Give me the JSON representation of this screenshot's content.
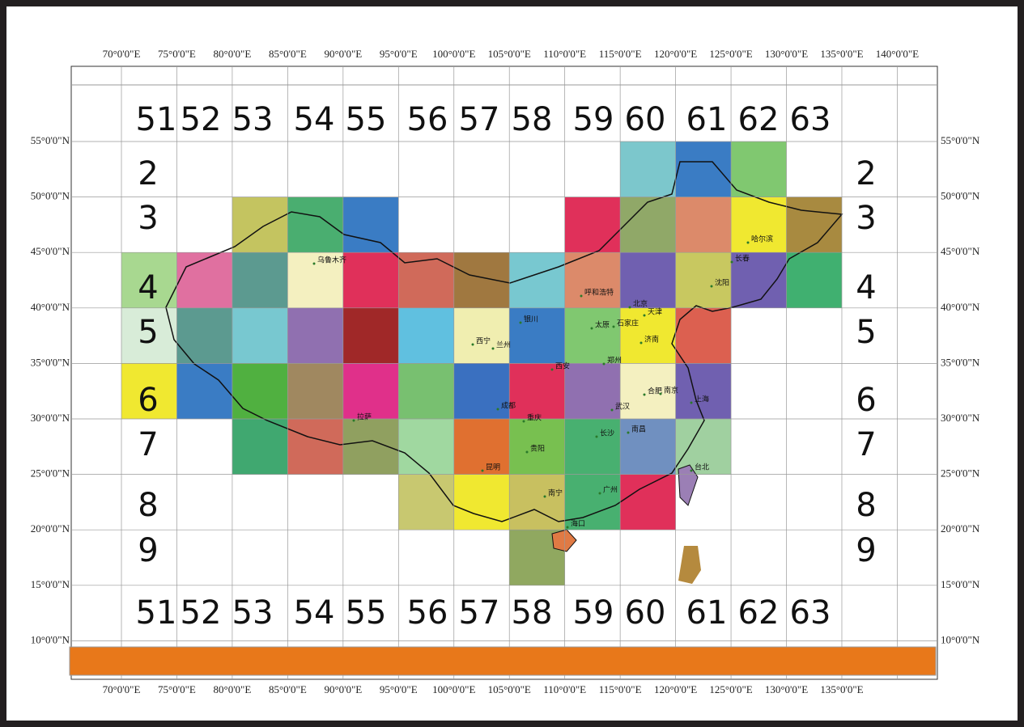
{
  "map": {
    "top_lon_labels": [
      "70°0'0\"E",
      "75°0'0\"E",
      "80°0'0\"E",
      "85°0'0\"E",
      "90°0'0\"E",
      "95°0'0\"E",
      "100°0'0\"E",
      "105°0'0\"E",
      "110°0'0\"E",
      "115°0'0\"E",
      "120°0'0\"E",
      "125°0'0\"E",
      "130°0'0\"E",
      "135°0'0\"E",
      "140°0'0\"E"
    ],
    "bottom_lon_labels": [
      "70°0'0\"E",
      "75°0'0\"E",
      "80°0'0\"E",
      "85°0'0\"E",
      "90°0'0\"E",
      "95°0'0\"E",
      "100°0'0\"E",
      "105°0'0\"E",
      "110°0'0\"E",
      "115°0'0\"E",
      "120°0'0\"E",
      "125°0'0\"E",
      "130°0'0\"E",
      "135°0'0\"E"
    ],
    "left_lat_labels": [
      "55°0'0\"N",
      "50°0'0\"N",
      "45°0'0\"N",
      "40°0'0\"N",
      "35°0'0\"N",
      "30°0'0\"N",
      "25°0'0\"N",
      "20°0'0\"N",
      "15°0'0\"N",
      "10°0'0\"N"
    ],
    "right_lat_labels": [
      "55°0'0\"N",
      "50°0'0\"N",
      "45°0'0\"N",
      "40°0'0\"N",
      "35°0'0\"N",
      "30°0'0\"N",
      "25°0'0\"N",
      "20°0'0\"N",
      "15°0'0\"N",
      "10°0'0\"N"
    ],
    "top_sheet_columns": [
      "51",
      "52",
      "53",
      "54",
      "55",
      "56",
      "57",
      "58",
      "59",
      "60",
      "61",
      "62",
      "63"
    ],
    "bottom_sheet_columns": [
      "51",
      "52",
      "53",
      "54",
      "55",
      "56",
      "57",
      "58",
      "59",
      "60",
      "61",
      "62",
      "63"
    ],
    "left_sheet_rows": [
      "2",
      "3",
      "4",
      "5",
      "6",
      "7",
      "8",
      "9"
    ],
    "right_sheet_rows": [
      "2",
      "3",
      "4",
      "5",
      "6",
      "7",
      "8",
      "9"
    ],
    "cities": [
      "乌鲁木齐",
      "呼和浩特",
      "哈尔滨",
      "长春",
      "沈阳",
      "北京",
      "天津",
      "石家庄",
      "太原",
      "银川",
      "西宁",
      "兰州",
      "济南",
      "郑州",
      "西安",
      "合肥",
      "南京",
      "上海",
      "成都",
      "武汉",
      "拉萨",
      "重庆",
      "长沙",
      "南昌",
      "贵阳",
      "昆明",
      "台北",
      "南宁",
      "广州",
      "海口"
    ]
  }
}
